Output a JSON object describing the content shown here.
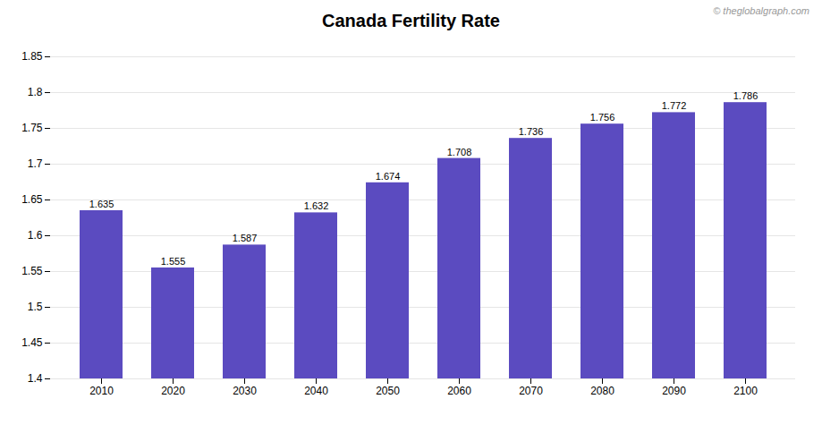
{
  "chart_data": {
    "type": "bar",
    "title": "Canada Fertility Rate",
    "categories": [
      "2010",
      "2020",
      "2030",
      "2040",
      "2050",
      "2060",
      "2070",
      "2080",
      "2090",
      "2100"
    ],
    "values": [
      1.635,
      1.555,
      1.587,
      1.632,
      1.674,
      1.708,
      1.736,
      1.756,
      1.772,
      1.786
    ],
    "color": "#5B4BC0",
    "ylim": [
      1.4,
      1.85
    ],
    "yticks": [
      1.4,
      1.45,
      1.5,
      1.55,
      1.6,
      1.65,
      1.7,
      1.75,
      1.8,
      1.85
    ],
    "grid": true,
    "data_labels": true,
    "annotation": "© theglobalgraph.com"
  }
}
